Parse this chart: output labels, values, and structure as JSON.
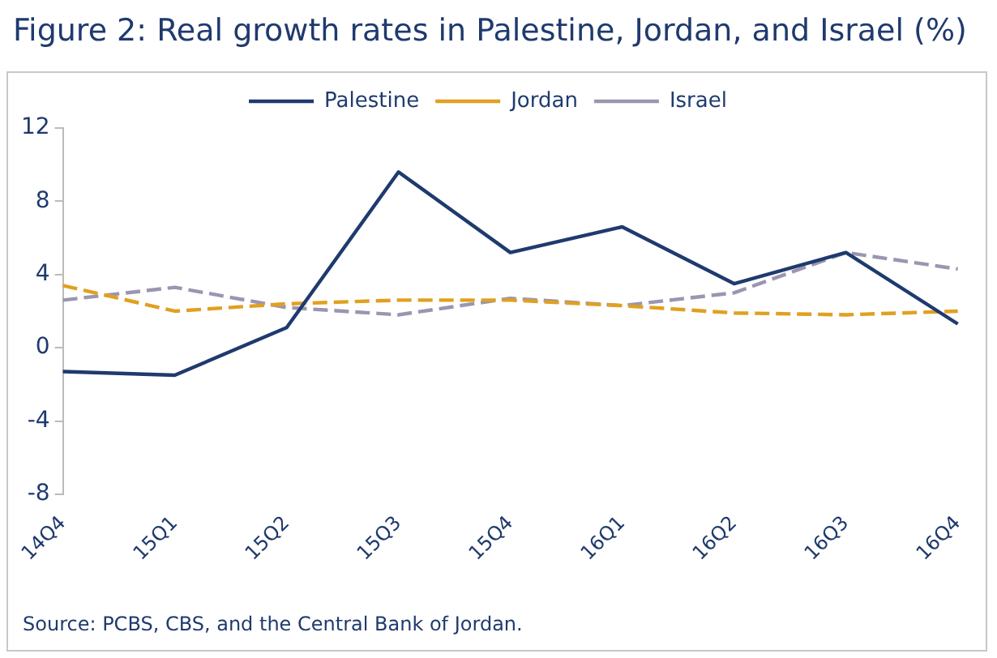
{
  "chart_data": {
    "type": "line",
    "title": "Figure 2: Real growth rates in Palestine, Jordan, and Israel (%)",
    "categories": [
      "14Q4",
      "15Q1",
      "15Q2",
      "15Q3",
      "15Q4",
      "16Q1",
      "16Q2",
      "16Q3",
      "16Q4"
    ],
    "series": [
      {
        "name": "Palestine",
        "color": "#1f3a6e",
        "line_style": "solid",
        "values": [
          -1.3,
          -1.5,
          1.1,
          9.6,
          5.2,
          6.6,
          3.5,
          5.2,
          1.3
        ]
      },
      {
        "name": "Jordan",
        "color": "#e0a020",
        "line_style": "dashed",
        "values": [
          3.4,
          2.0,
          2.4,
          2.6,
          2.6,
          2.3,
          1.9,
          1.8,
          2.0
        ]
      },
      {
        "name": "Israel",
        "color": "#9a96b0",
        "line_style": "dashed",
        "values": [
          2.6,
          3.3,
          2.2,
          1.8,
          2.7,
          2.3,
          3.0,
          5.2,
          4.3
        ]
      }
    ],
    "ylim": [
      -8,
      12
    ],
    "yticks": [
      -8,
      -4,
      0,
      4,
      8,
      12
    ],
    "grid": false,
    "legend": "top",
    "marker": "none",
    "annotations": [
      "Source: PCBS, CBS, and the Central Bank of Jordan."
    ]
  }
}
